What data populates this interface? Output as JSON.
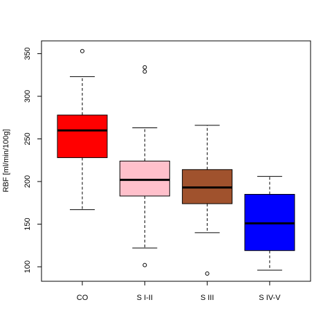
{
  "chart_data": {
    "type": "box",
    "categories": [
      "CO",
      "S I-II",
      "S III",
      "S IV-V"
    ],
    "ylabel": "RBF [ml/min/100g]",
    "xlabel": "",
    "title": "",
    "ylim": [
      83,
      365
    ],
    "yticks": [
      100,
      150,
      200,
      250,
      300,
      350
    ],
    "yticklabels": [
      "100",
      "150",
      "200",
      "250",
      "300",
      "350"
    ],
    "boxes": [
      {
        "category": "CO",
        "color": "#ff0000",
        "whisker_low": 167,
        "q1": 228,
        "median": 260,
        "q3": 278,
        "whisker_high": 323,
        "outliers": [
          353
        ]
      },
      {
        "category": "S I-II",
        "color": "#ffc0cb",
        "whisker_low": 122,
        "q1": 183,
        "median": 202,
        "q3": 224,
        "whisker_high": 263,
        "outliers": [
          329,
          334,
          102
        ]
      },
      {
        "category": "S III",
        "color": "#a0522d",
        "whisker_low": 140,
        "q1": 174,
        "median": 193,
        "q3": 214,
        "whisker_high": 266,
        "outliers": [
          92
        ]
      },
      {
        "category": "S IV-V",
        "color": "#0000ff",
        "whisker_low": 96,
        "q1": 119,
        "median": 151,
        "q3": 185,
        "whisker_high": 206,
        "outliers": []
      }
    ]
  }
}
